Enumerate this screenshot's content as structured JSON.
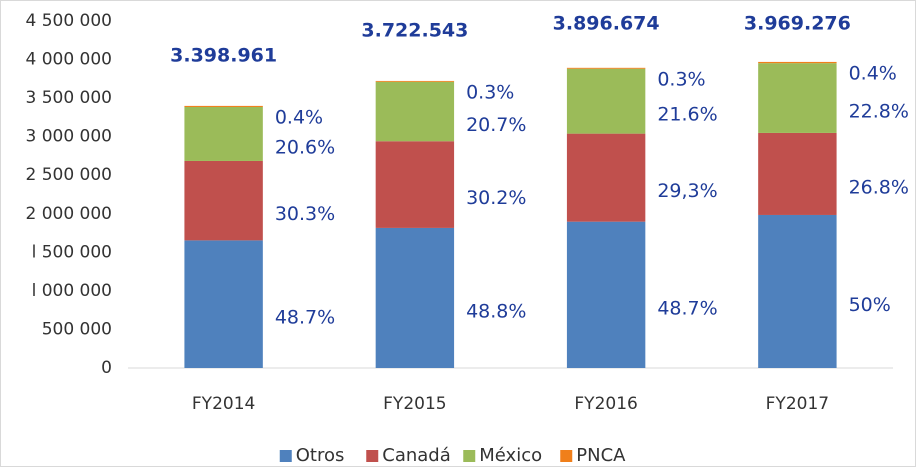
{
  "chart_data": {
    "type": "stacked_bar",
    "categories": [
      "FY2014",
      "FY2015",
      "FY2016",
      "FY2017"
    ],
    "series": [
      {
        "name": "Otros",
        "color": "#4f81bd",
        "values": [
          1655000,
          1816600,
          1897700,
          1984600
        ],
        "share_labels": [
          "48.7%",
          "48.8%",
          "48.7%",
          "50%"
        ]
      },
      {
        "name": "Canadá",
        "color": "#c0504d",
        "values": [
          1030000,
          1124200,
          1141700,
          1063800
        ],
        "share_labels": [
          "30.3%",
          "30.2%",
          "29,3%",
          "26.8%"
        ]
      },
      {
        "name": "México",
        "color": "#9bbb59",
        "values": [
          700000,
          770600,
          841700,
          905000
        ],
        "share_labels": [
          "20.6%",
          "20.7%",
          "21.6%",
          "22.8%"
        ]
      },
      {
        "name": "PNCA",
        "color": "#f07f1a",
        "values": [
          14000,
          11200,
          11700,
          15900
        ],
        "share_labels": [
          "0.4%",
          "0.3%",
          "0.3%",
          "0.4%"
        ]
      }
    ],
    "totals": [
      3398961,
      3722543,
      3896674,
      3969276
    ],
    "total_labels": [
      "3.398.961",
      "3.722.543",
      "3.896.674",
      "3.969.276"
    ],
    "ylim": [
      0,
      4500000
    ],
    "yticks": [
      0,
      {
        "value": 500000,
        "label": "500 000"
      },
      {
        "value": 1000000,
        "label": "l 000 000"
      },
      {
        "value": 1500000,
        "label": "l 500 000"
      },
      {
        "value": 2000000,
        "label": "2 000 000"
      },
      {
        "value": 2500000,
        "label": "2 500 000"
      },
      {
        "value": 3000000,
        "label": "3 000 000"
      },
      {
        "value": 3500000,
        "label": "3 500 000"
      },
      {
        "value": 4000000,
        "label": "4 000 000"
      },
      {
        "value": 4500000,
        "label": "4 500 000"
      }
    ],
    "grid": false,
    "legend": "bottom"
  }
}
